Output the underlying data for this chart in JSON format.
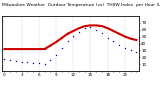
{
  "title": "Milwaukee Weather  Outdoor Temperature (vs)  THSW Index  per Hour (Last 24 Hours)",
  "hours": [
    0,
    1,
    2,
    3,
    4,
    5,
    6,
    7,
    8,
    9,
    10,
    11,
    12,
    13,
    14,
    15,
    16,
    17,
    18,
    19,
    20,
    21,
    22,
    23
  ],
  "temp": [
    32,
    32,
    32,
    32,
    32,
    32,
    32,
    32,
    37,
    42,
    48,
    54,
    58,
    62,
    65,
    66,
    66,
    65,
    62,
    58,
    54,
    50,
    47,
    45
  ],
  "thsw": [
    18,
    16,
    15,
    14,
    13,
    12,
    12,
    11,
    16,
    23,
    34,
    44,
    51,
    57,
    62,
    64,
    60,
    55,
    48,
    43,
    38,
    34,
    30,
    28
  ],
  "temp_color": "#cc0000",
  "thsw_color": "#0000bb",
  "bg_color": "#ffffff",
  "grid_color": "#aaaaaa",
  "ylim": [
    0,
    80
  ],
  "yticks_right": [
    10,
    20,
    30,
    40,
    50,
    60,
    70
  ],
  "title_fontsize": 3.2,
  "tick_fontsize": 3.0,
  "figsize": [
    1.6,
    0.87
  ],
  "dpi": 100
}
